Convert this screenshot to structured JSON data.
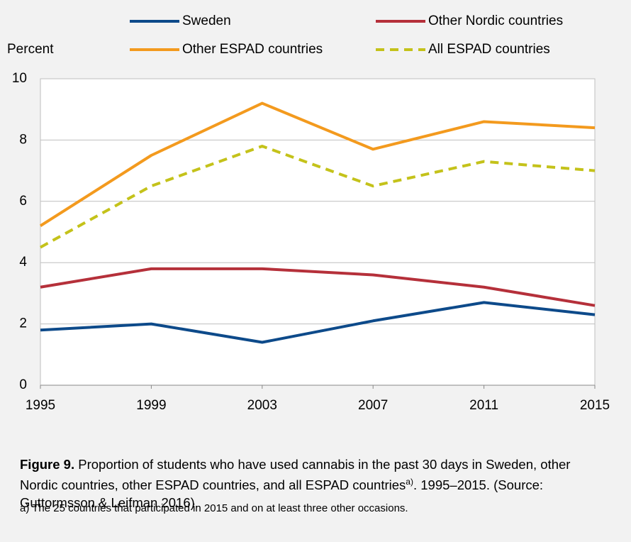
{
  "chart_data": {
    "type": "line",
    "y_axis_label": "Percent",
    "x": [
      1995,
      1999,
      2003,
      2007,
      2011,
      2015
    ],
    "xlim": [
      1995,
      2015
    ],
    "xticks": [
      1995,
      1999,
      2003,
      2007,
      2011,
      2015
    ],
    "ylim": [
      0,
      10
    ],
    "yticks": [
      0,
      2,
      4,
      6,
      8,
      10
    ],
    "grid": true,
    "series": [
      {
        "name": "Sweden",
        "color": "#0d4a8a",
        "dashed": false,
        "values": [
          1.8,
          2.0,
          1.4,
          2.1,
          2.7,
          2.3
        ]
      },
      {
        "name": "Other Nordic countries",
        "color": "#b5303a",
        "dashed": false,
        "values": [
          3.2,
          3.8,
          3.8,
          3.6,
          3.2,
          2.6
        ]
      },
      {
        "name": "Other ESPAD countries",
        "color": "#f39a1e",
        "dashed": false,
        "values": [
          5.2,
          7.5,
          9.2,
          7.7,
          8.6,
          8.4
        ]
      },
      {
        "name": "All ESPAD countries",
        "color": "#c4c21a",
        "dashed": true,
        "values": [
          4.5,
          6.5,
          7.8,
          6.5,
          7.3,
          7.0
        ]
      }
    ]
  },
  "caption": {
    "label": "Figure 9.",
    "text": "Proportion of students who have used cannabis in the past 30 days in Sweden, other Nordic countries, other ESPAD countries, and all ESPAD countries",
    "superscript": "a)",
    "end": ". 1995–2015. (Source: Guttormsson & Leifman 2016).",
    "footnote": "a) The 25 countries that participated in 2015 and on at least three other occasions."
  }
}
